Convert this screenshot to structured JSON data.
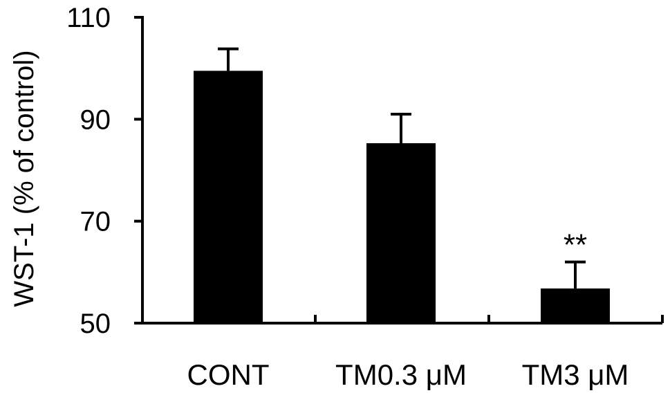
{
  "chart_data": {
    "type": "bar",
    "title": "",
    "xlabel": "",
    "ylabel": "WST-1 (% of control)",
    "ylim": [
      50,
      110
    ],
    "yticks": [
      50,
      70,
      90,
      110
    ],
    "categories": [
      "CONT",
      "TM0.3 μM",
      "TM3 μM"
    ],
    "values": [
      99.5,
      85.3,
      56.8
    ],
    "error_upper": [
      4.3,
      5.7,
      5.2
    ],
    "annotations": [
      "",
      "",
      "**"
    ],
    "bar_color": "#000000",
    "grid": false,
    "legend": "none"
  }
}
